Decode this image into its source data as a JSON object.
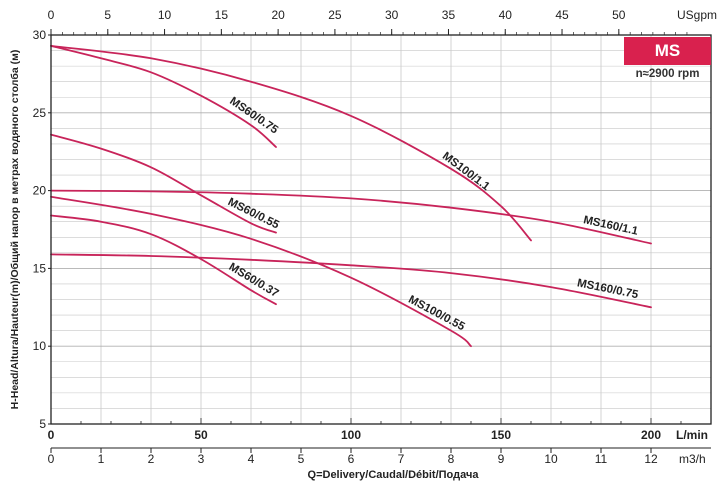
{
  "badge": {
    "series_label": "MS",
    "speed_label": "n≈2900 rpm"
  },
  "colors": {
    "curve": "#c8245a",
    "grid": "#c8c8c8",
    "axis": "#222222",
    "badge": "#d9214e"
  },
  "chart_data": {
    "type": "line",
    "title": "",
    "ylabel": "H-Head/Altura/Hauteur(m)/Общий напор в метрах водяного столба (м)",
    "xlabel": "Q=Delivery/Caudal/Débit/Подача",
    "ylim": [
      5,
      30
    ],
    "yticks": [
      "5",
      "10",
      "15",
      "20",
      "25",
      "30"
    ],
    "x_m3h_lim": [
      0,
      13.2
    ],
    "x_m3h_ticks": [
      "0",
      "1",
      "2",
      "3",
      "4",
      "5",
      "6",
      "7",
      "8",
      "9",
      "10",
      "11",
      "12"
    ],
    "x_m3h_unit": "m3/h",
    "x_lmin_ticks": [
      "0",
      "50",
      "100",
      "150",
      "200"
    ],
    "x_lmin_unit": "L/min",
    "x_usgpm_ticks": [
      "0",
      "5",
      "10",
      "15",
      "20",
      "25",
      "30",
      "35",
      "40",
      "45",
      "50"
    ],
    "x_usgpm_unit": "USgpm",
    "grid": true,
    "series": [
      {
        "name": "MS60/0.75",
        "x": [
          0,
          1,
          2,
          3,
          4,
          4.5
        ],
        "y": [
          29.3,
          28.5,
          27.6,
          26.1,
          24.2,
          22.8
        ]
      },
      {
        "name": "MS100/1.1",
        "x": [
          0,
          2,
          4,
          6,
          8,
          9,
          9.6
        ],
        "y": [
          29.3,
          28.5,
          27.0,
          24.8,
          21.4,
          19.0,
          16.8
        ]
      },
      {
        "name": "MS160/1.1",
        "x": [
          0,
          2,
          4,
          6,
          8,
          10,
          12
        ],
        "y": [
          20.0,
          19.95,
          19.8,
          19.5,
          18.9,
          18.0,
          16.6
        ]
      },
      {
        "name": "MS60/0.55",
        "x": [
          0,
          1,
          2,
          3,
          4,
          4.5
        ],
        "y": [
          23.6,
          22.7,
          21.5,
          19.7,
          17.9,
          17.3
        ]
      },
      {
        "name": "MS100/0.55",
        "x": [
          0,
          2,
          4,
          6,
          8,
          8.4
        ],
        "y": [
          19.6,
          18.5,
          16.9,
          14.4,
          11.0,
          10.0
        ]
      },
      {
        "name": "MS160/0.75",
        "x": [
          0,
          2,
          4,
          6,
          8,
          10,
          12
        ],
        "y": [
          15.9,
          15.8,
          15.55,
          15.2,
          14.7,
          13.8,
          12.5
        ]
      },
      {
        "name": "MS60/0.37",
        "x": [
          0,
          1,
          2,
          3,
          4,
          4.5
        ],
        "y": [
          18.4,
          18.0,
          17.2,
          15.6,
          13.6,
          12.7
        ]
      }
    ]
  }
}
